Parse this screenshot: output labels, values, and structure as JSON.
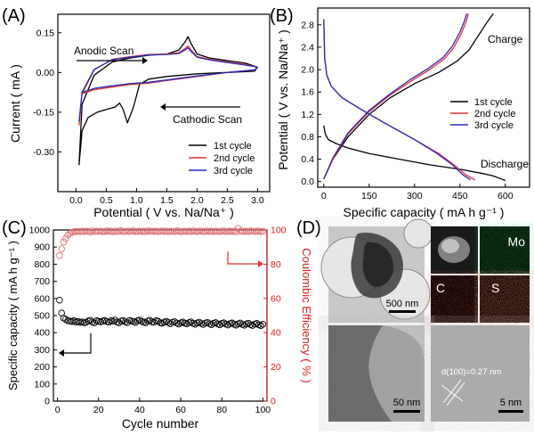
{
  "panels": {
    "A": {
      "letter": "(A)",
      "anodic": "Anodic Scan",
      "cathodic": "Cathodic Scan"
    },
    "B": {
      "letter": "(B)",
      "charge": "Charge",
      "discharge": "Discharge"
    },
    "C": {
      "letter": "(C)"
    },
    "D": {
      "letter": "(D)",
      "scale1": "500 nm",
      "scale2": "50 nm",
      "scale3": "5 nm",
      "map_mo": "Mo",
      "map_c": "C",
      "map_s": "S",
      "d_spacing": "d(100)=0.27 nm",
      "colors": {
        "mo": "#4fe03a",
        "c": "#f04040",
        "s": "#ff5a3c"
      }
    }
  },
  "chart_data": [
    {
      "panel": "A",
      "type": "line",
      "xlabel": "Potential ( V vs. Na/Na⁺ )",
      "ylabel": "Current ( mA )",
      "xlim": [
        -0.3,
        3.2
      ],
      "ylim": [
        -0.45,
        0.22
      ],
      "xticks": [
        "0.0",
        "0.5",
        "1.0",
        "1.5",
        "2.0",
        "2.5",
        "3.0"
      ],
      "yticks": [
        "-0.30",
        "-0.15",
        "0.00",
        "0.15"
      ],
      "legend": "bottom-right",
      "series": [
        {
          "name": "1st cycle",
          "color": "#000000",
          "x": [
            0.05,
            0.1,
            0.2,
            0.35,
            0.5,
            0.65,
            0.72,
            0.78,
            0.85,
            0.95,
            1.05,
            1.2,
            1.5,
            2.0,
            2.5,
            2.95,
            3.0,
            2.8,
            2.5,
            2.2,
            2.0,
            1.9,
            1.85,
            1.8,
            1.7,
            1.5,
            1.2,
            0.9,
            0.6,
            0.3,
            0.1,
            0.05
          ],
          "y": [
            -0.35,
            -0.22,
            -0.17,
            -0.15,
            -0.14,
            -0.13,
            -0.115,
            -0.14,
            -0.19,
            -0.13,
            -0.045,
            -0.025,
            -0.015,
            -0.005,
            0.0,
            0.005,
            0.02,
            0.035,
            0.045,
            0.055,
            0.07,
            0.11,
            0.135,
            0.115,
            0.085,
            0.07,
            0.065,
            0.055,
            0.04,
            -0.01,
            -0.12,
            -0.35
          ]
        },
        {
          "name": "2nd cycle",
          "color": "#e03030",
          "x": [
            0.05,
            0.1,
            0.3,
            0.6,
            0.9,
            1.2,
            1.5,
            2.0,
            2.5,
            2.95,
            3.0,
            2.8,
            2.5,
            2.2,
            2.0,
            1.9,
            1.85,
            1.8,
            1.7,
            1.5,
            1.2,
            0.9,
            0.6,
            0.3,
            0.1,
            0.05
          ],
          "y": [
            -0.2,
            -0.08,
            -0.065,
            -0.055,
            -0.045,
            -0.04,
            -0.03,
            -0.015,
            0.0,
            0.01,
            0.02,
            0.03,
            0.04,
            0.05,
            0.06,
            0.085,
            0.1,
            0.09,
            0.075,
            0.07,
            0.068,
            0.06,
            0.05,
            0.01,
            -0.08,
            -0.2
          ]
        },
        {
          "name": "3rd cycle",
          "color": "#2a2ab8",
          "x": [
            0.05,
            0.1,
            0.3,
            0.6,
            0.9,
            1.2,
            1.5,
            2.0,
            2.5,
            2.95,
            3.0,
            2.8,
            2.5,
            2.2,
            2.0,
            1.9,
            1.85,
            1.8,
            1.7,
            1.5,
            1.2,
            0.9,
            0.6,
            0.3,
            0.1,
            0.05
          ],
          "y": [
            -0.185,
            -0.075,
            -0.06,
            -0.05,
            -0.042,
            -0.037,
            -0.028,
            -0.013,
            0.0,
            0.01,
            0.02,
            0.028,
            0.038,
            0.048,
            0.058,
            0.08,
            0.093,
            0.085,
            0.072,
            0.068,
            0.066,
            0.058,
            0.048,
            0.012,
            -0.075,
            -0.185
          ]
        }
      ]
    },
    {
      "panel": "B",
      "type": "line",
      "xlabel": "Specific capacity ( mA h g⁻¹ )",
      "ylabel": "Potential ( V vs. Na/Na⁺ )",
      "xlim": [
        -20,
        680
      ],
      "ylim": [
        -0.1,
        3.1
      ],
      "xticks": [
        "0",
        "150",
        "300",
        "450",
        "600"
      ],
      "yticks": [
        "0.0",
        "0.4",
        "0.8",
        "1.2",
        "1.6",
        "2.0",
        "2.4",
        "2.8"
      ],
      "legend": "right",
      "series": [
        {
          "name": "1st cycle",
          "color": "#000000",
          "x": [
            0,
            5,
            15,
            40,
            80,
            150,
            250,
            350,
            450,
            520,
            560,
            590,
            600
          ],
          "discharge_y": [
            1.0,
            0.85,
            0.75,
            0.68,
            0.6,
            0.5,
            0.4,
            0.3,
            0.22,
            0.15,
            0.1,
            0.04,
            0.02
          ],
          "charge_x": [
            0,
            30,
            80,
            150,
            220,
            300,
            380,
            440,
            480,
            510,
            540,
            560
          ],
          "charge_y": [
            0.05,
            0.4,
            0.8,
            1.2,
            1.5,
            1.75,
            1.95,
            2.15,
            2.35,
            2.6,
            2.85,
            3.0
          ]
        },
        {
          "name": "2nd cycle",
          "color": "#e03030",
          "x": [
            0,
            3,
            10,
            25,
            60,
            120,
            200,
            300,
            380,
            430,
            470,
            500
          ],
          "discharge_y": [
            2.9,
            2.2,
            1.9,
            1.7,
            1.5,
            1.3,
            1.05,
            0.75,
            0.5,
            0.3,
            0.12,
            0.03
          ],
          "charge_x": [
            0,
            30,
            80,
            150,
            220,
            290,
            350,
            400,
            430,
            455,
            470,
            478
          ],
          "charge_y": [
            0.05,
            0.4,
            0.85,
            1.25,
            1.55,
            1.8,
            2.0,
            2.2,
            2.4,
            2.65,
            2.85,
            3.0
          ]
        },
        {
          "name": "3rd cycle",
          "color": "#2a2ab8",
          "x": [
            0,
            3,
            10,
            25,
            60,
            120,
            200,
            300,
            375,
            425,
            460,
            485
          ],
          "discharge_y": [
            2.9,
            2.2,
            1.9,
            1.7,
            1.5,
            1.3,
            1.05,
            0.75,
            0.5,
            0.3,
            0.12,
            0.03
          ],
          "charge_x": [
            0,
            30,
            80,
            150,
            220,
            285,
            345,
            395,
            425,
            450,
            465,
            472
          ],
          "charge_y": [
            0.05,
            0.42,
            0.87,
            1.27,
            1.57,
            1.82,
            2.02,
            2.22,
            2.42,
            2.67,
            2.87,
            3.0
          ]
        }
      ]
    },
    {
      "panel": "C",
      "type": "scatter",
      "xlabel": "Cycle number",
      "ylabel": "Specific capacity ( mA h g⁻¹ )",
      "y2label": "Coulombic Efficiency ( % )",
      "xlim": [
        -2,
        102
      ],
      "ylim": [
        0,
        1000
      ],
      "y2lim": [
        0,
        100
      ],
      "xticks": [
        "0",
        "20",
        "40",
        "60",
        "80",
        "100"
      ],
      "yticks": [
        "0",
        "100",
        "200",
        "300",
        "400",
        "500",
        "600",
        "700",
        "800",
        "900",
        "1000"
      ],
      "y2ticks": [
        "0",
        "20",
        "40",
        "60",
        "80",
        "100"
      ],
      "series": [
        {
          "name": "Specific capacity",
          "color": "#000000",
          "axis": "left",
          "x_start": 1,
          "x_step": 1,
          "values": [
            590,
            515,
            485,
            478,
            470,
            468,
            465,
            470,
            462,
            466,
            460,
            463,
            458,
            461,
            468,
            472,
            462,
            458,
            470,
            466,
            463,
            468,
            472,
            465,
            461,
            470,
            466,
            474,
            462,
            458,
            468,
            471,
            463,
            459,
            472,
            468,
            465,
            460,
            470,
            474,
            466,
            462,
            458,
            469,
            472,
            463,
            461,
            470,
            467,
            458,
            455,
            462,
            466,
            459,
            452,
            461,
            464,
            456,
            450,
            458,
            462,
            455,
            451,
            459,
            463,
            454,
            449,
            457,
            461,
            453,
            448,
            456,
            460,
            452,
            447,
            455,
            459,
            451,
            446,
            454,
            458,
            450,
            445,
            453,
            457,
            449,
            444,
            452,
            456,
            448,
            443,
            451,
            455,
            447,
            442,
            450,
            454,
            446,
            441,
            449
          ]
        },
        {
          "name": "Coulombic Efficiency",
          "color": "#e07070",
          "axis": "right",
          "x_start": 1,
          "x_step": 1,
          "values": [
            85,
            89,
            93,
            95,
            97,
            98,
            98.5,
            99,
            99,
            99.2,
            99,
            99.3,
            99.1,
            99.4,
            99.2,
            98.8,
            99.5,
            99.1,
            99.3,
            99.2,
            99.4,
            99.1,
            99.0,
            99.5,
            99.2,
            99.3,
            98.9,
            99.4,
            99.1,
            99.3,
            99.6,
            99.0,
            99.2,
            99.4,
            99.1,
            99.3,
            99.5,
            99.0,
            99.2,
            99.4,
            99.1,
            99.3,
            99.0,
            99.5,
            99.2,
            99.4,
            99.1,
            99.3,
            99.0,
            99.2,
            99.5,
            99.1,
            99.3,
            99.0,
            99.4,
            99.2,
            99.1,
            99.5,
            99.3,
            99.0,
            99.2,
            99.4,
            99.1,
            99.3,
            99.0,
            99.5,
            99.2,
            99.1,
            99.4,
            99.3,
            99.0,
            99.2,
            99.5,
            99.1,
            99.3,
            99.0,
            99.4,
            99.2,
            99.1,
            99.3,
            99.5,
            99.0,
            99.2,
            99.4,
            99.1,
            99.3,
            99.0,
            101,
            99.2,
            99.4,
            99.1,
            99.3,
            99.0,
            99.5,
            99.2,
            99.1,
            99.4,
            99.3,
            99.0,
            99.2
          ]
        }
      ]
    }
  ]
}
